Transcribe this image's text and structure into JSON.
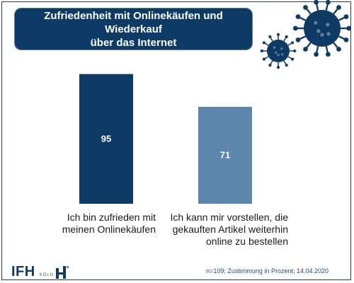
{
  "title": {
    "line1": "Zufriedenheit mit Onlinekäufen und Wiederkauf",
    "line2": "über das Internet"
  },
  "colors": {
    "navy": "#0d3b66",
    "steel": "#5d86ac",
    "virus": "#0d3b66"
  },
  "chart_data": {
    "type": "bar",
    "categories": [
      "Ich bin zufrieden mit meinen Onlinekäufen",
      "Ich kann mir vorstellen, die gekauften Artikel weiterhin online zu bestellen"
    ],
    "values": [
      95,
      71
    ],
    "bar_colors": [
      "#0d3b66",
      "#5d86ac"
    ],
    "value_labels": [
      "95",
      "71"
    ],
    "ylim": [
      0,
      100
    ],
    "grid": false,
    "xlabel": "",
    "ylabel": ""
  },
  "category_lines": [
    [
      "Ich bin zufrieden mit",
      "meinen Onlinekäufen"
    ],
    [
      "Ich kann mir vorstellen, die",
      "gekauften Artikel weiterhin",
      "online zu bestellen"
    ]
  ],
  "footer": {
    "logo": "IFH",
    "logo_city": "KÖLN",
    "note": "n=109; Zustimmung in Prozent; 14.04.2020"
  },
  "decorations": {
    "icon": "coronavirus-icon"
  }
}
